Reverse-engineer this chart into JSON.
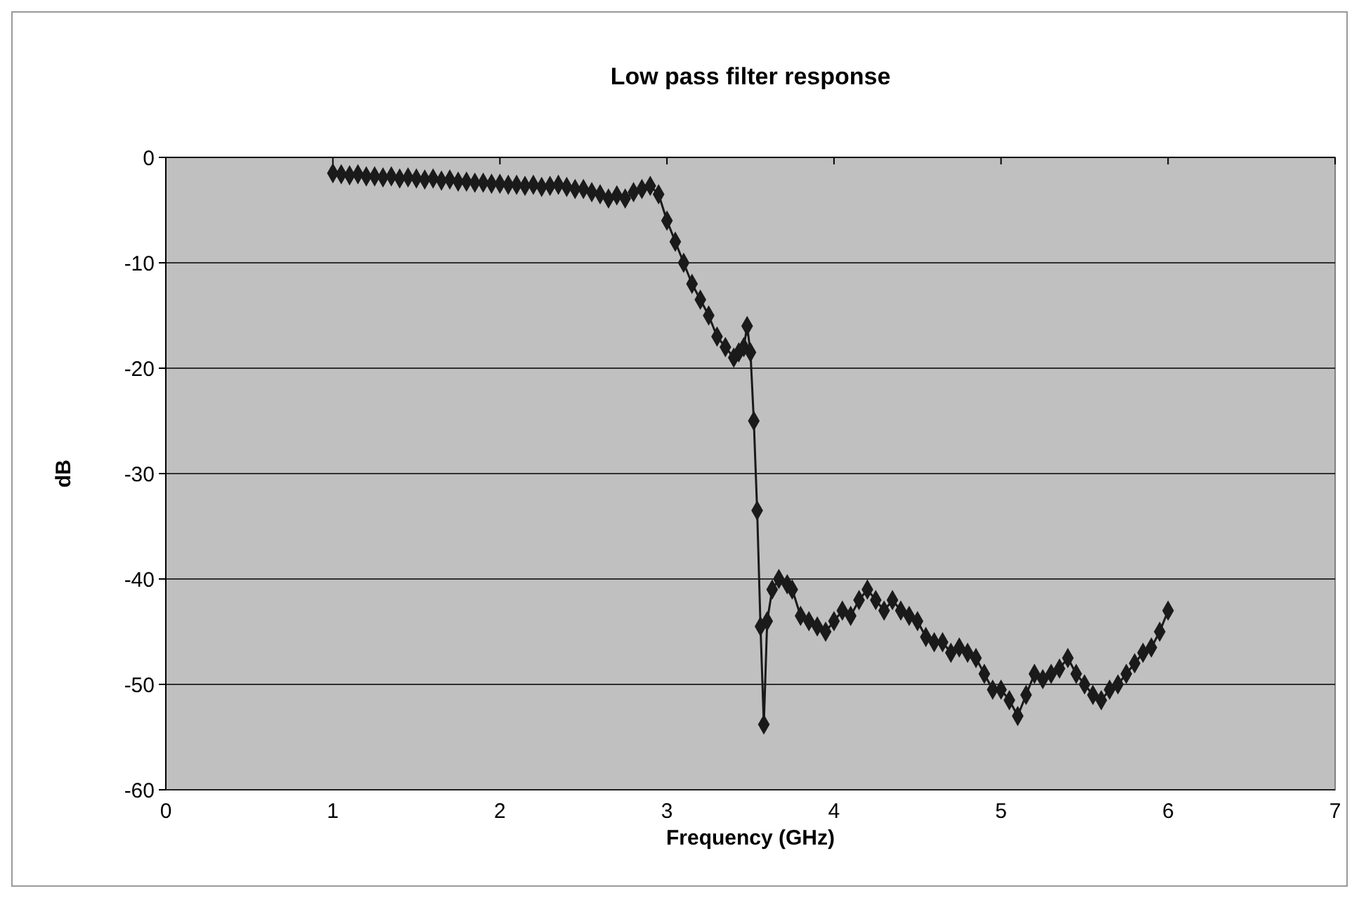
{
  "chart_data": {
    "type": "line",
    "title": "Low pass filter response",
    "xlabel": "Frequency (GHz)",
    "ylabel": "dB",
    "xlim": [
      0,
      7
    ],
    "xticks": [
      0,
      1,
      2,
      3,
      4,
      5,
      6,
      7
    ],
    "ylim": [
      -60,
      0
    ],
    "yticks": [
      -60,
      -50,
      -40,
      -30,
      -20,
      -10,
      0
    ],
    "grid": "y",
    "marker": "diamond",
    "line_style": "solid",
    "series": [
      {
        "color": "#1a1a1a",
        "x": [
          1.0,
          1.05,
          1.1,
          1.15,
          1.2,
          1.25,
          1.3,
          1.35,
          1.4,
          1.45,
          1.5,
          1.55,
          1.6,
          1.65,
          1.7,
          1.75,
          1.8,
          1.85,
          1.9,
          1.95,
          2.0,
          2.05,
          2.1,
          2.15,
          2.2,
          2.25,
          2.3,
          2.35,
          2.4,
          2.45,
          2.5,
          2.55,
          2.6,
          2.65,
          2.7,
          2.75,
          2.8,
          2.85,
          2.9,
          2.95,
          3.0,
          3.05,
          3.1,
          3.15,
          3.2,
          3.25,
          3.3,
          3.35,
          3.4,
          3.43,
          3.46,
          3.48,
          3.5,
          3.52,
          3.54,
          3.56,
          3.58,
          3.6,
          3.63,
          3.67,
          3.72,
          3.75,
          3.8,
          3.85,
          3.9,
          3.95,
          4.0,
          4.05,
          4.1,
          4.15,
          4.2,
          4.25,
          4.3,
          4.35,
          4.4,
          4.45,
          4.5,
          4.55,
          4.6,
          4.65,
          4.7,
          4.75,
          4.8,
          4.85,
          4.9,
          4.95,
          5.0,
          5.05,
          5.1,
          5.15,
          5.2,
          5.25,
          5.3,
          5.35,
          5.4,
          5.45,
          5.5,
          5.55,
          5.6,
          5.65,
          5.7,
          5.75,
          5.8,
          5.85,
          5.9,
          5.95,
          6.0
        ],
        "values": [
          -1.5,
          -1.6,
          -1.7,
          -1.6,
          -1.8,
          -1.8,
          -1.9,
          -1.8,
          -2.0,
          -1.9,
          -2.0,
          -2.1,
          -2.0,
          -2.2,
          -2.1,
          -2.3,
          -2.3,
          -2.4,
          -2.4,
          -2.5,
          -2.5,
          -2.6,
          -2.6,
          -2.7,
          -2.6,
          -2.8,
          -2.7,
          -2.6,
          -2.8,
          -3.0,
          -3.0,
          -3.3,
          -3.5,
          -3.9,
          -3.6,
          -3.9,
          -3.3,
          -3.0,
          -2.7,
          -3.5,
          -6,
          -8,
          -10,
          -12,
          -13.5,
          -15,
          -17,
          -18,
          -19,
          -18.5,
          -18,
          -16,
          -18.5,
          -25,
          -33.5,
          -44.5,
          -53.8,
          -44,
          -41,
          -40,
          -40.5,
          -41,
          -43.5,
          -44,
          -44.5,
          -45,
          -44,
          -43,
          -43.5,
          -42,
          -41,
          -42,
          -43,
          -42,
          -43,
          -43.5,
          -44,
          -45.5,
          -46,
          -46,
          -47,
          -46.5,
          -47,
          -47.5,
          -49,
          -50.5,
          -50.5,
          -51.5,
          -53,
          -51,
          -49,
          -49.5,
          -49,
          -48.5,
          -47.5,
          -49,
          -50,
          -51,
          -51.5,
          -50.5,
          -50,
          -49,
          -48,
          -47,
          -46.5,
          -45,
          -43
        ]
      }
    ]
  }
}
